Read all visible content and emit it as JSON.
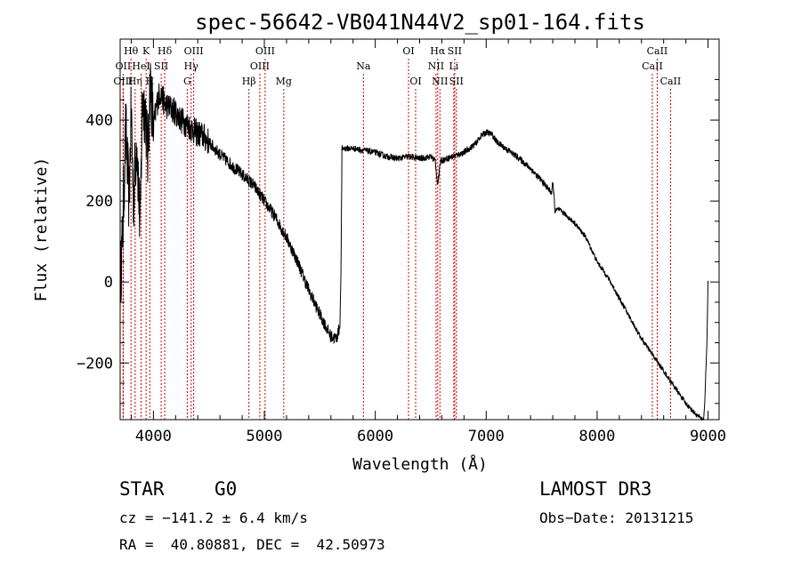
{
  "chart_data": {
    "type": "line",
    "title": "spec-56642-VB041N44V2_sp01-164.fits",
    "xlabel": "Wavelength (Å)",
    "ylabel": "Flux (relative)",
    "xlim": [
      3700,
      9100
    ],
    "ylim": [
      -340,
      600
    ],
    "xticks": [
      4000,
      5000,
      6000,
      7000,
      8000,
      9000
    ],
    "xtick_labels": [
      "4000",
      "5000",
      "6000",
      "7000",
      "8000",
      "9000"
    ],
    "yticks": [
      -200,
      0,
      200,
      400
    ],
    "ytick_labels": [
      "−200",
      "0",
      "200",
      "400"
    ],
    "line_color": "#000000",
    "marker_color": "#cc0000",
    "spectrum": {
      "x": [
        3700,
        3720,
        3750,
        3780,
        3800,
        3820,
        3850,
        3880,
        3900,
        3930,
        3950,
        3970,
        4000,
        4030,
        4060,
        4100,
        4150,
        4200,
        4250,
        4300,
        4340,
        4380,
        4450,
        4500,
        4600,
        4700,
        4800,
        4860,
        4900,
        5000,
        5100,
        5200,
        5300,
        5400,
        5500,
        5600,
        5650,
        5680,
        5690,
        5700,
        5800,
        5900,
        6000,
        6100,
        6200,
        6300,
        6400,
        6500,
        6540,
        6563,
        6590,
        6700,
        6800,
        6900,
        6950,
        7000,
        7050,
        7100,
        7200,
        7300,
        7400,
        7500,
        7590,
        7600,
        7610,
        7620,
        7650,
        7700,
        7800,
        7900,
        8000,
        8100,
        8200,
        8300,
        8400,
        8500,
        8600,
        8700,
        8800,
        8900,
        8960,
        8970,
        8990,
        9000
      ],
      "y": [
        0,
        100,
        380,
        200,
        430,
        200,
        360,
        120,
        450,
        420,
        300,
        500,
        380,
        440,
        470,
        440,
        430,
        420,
        400,
        390,
        380,
        370,
        360,
        345,
        315,
        290,
        265,
        250,
        240,
        200,
        160,
        110,
        50,
        -20,
        -80,
        -135,
        -140,
        -110,
        0,
        330,
        330,
        325,
        320,
        310,
        305,
        310,
        305,
        310,
        300,
        240,
        300,
        310,
        320,
        340,
        360,
        370,
        365,
        345,
        325,
        305,
        280,
        250,
        220,
        245,
        220,
        175,
        180,
        170,
        145,
        110,
        50,
        10,
        -40,
        -90,
        -140,
        -180,
        -220,
        -260,
        -300,
        -330,
        -340,
        -300,
        -150,
        0
      ]
    },
    "lines": [
      {
        "label": "Hθ",
        "wave": 3798,
        "row": 1
      },
      {
        "label": "OII",
        "wave": 3727,
        "row": 2
      },
      {
        "label": "OIII",
        "wave": 3727,
        "row": 3
      },
      {
        "label": "K",
        "wave": 3934,
        "row": 1
      },
      {
        "label": "Hη",
        "wave": 3835,
        "row": 3
      },
      {
        "label": "HeI",
        "wave": 3889,
        "row": 2
      },
      {
        "label": "H",
        "wave": 3968,
        "row": 3
      },
      {
        "label": "Hδ",
        "wave": 4102,
        "row": 1
      },
      {
        "label": "SII",
        "wave": 4070,
        "row": 2
      },
      {
        "label": "OIII",
        "wave": 4363,
        "row": 1
      },
      {
        "label": "Hγ",
        "wave": 4340,
        "row": 2
      },
      {
        "label": "G",
        "wave": 4305,
        "row": 3
      },
      {
        "label": "OIII",
        "wave": 5007,
        "row": 1
      },
      {
        "label": "OIII",
        "wave": 4959,
        "row": 2
      },
      {
        "label": "Hβ",
        "wave": 4861,
        "row": 3
      },
      {
        "label": "Mg",
        "wave": 5175,
        "row": 3
      },
      {
        "label": "Na",
        "wave": 5893,
        "row": 2
      },
      {
        "label": "OI",
        "wave": 6300,
        "row": 1
      },
      {
        "label": "OI",
        "wave": 6364,
        "row": 3
      },
      {
        "label": "Hα",
        "wave": 6563,
        "row": 1
      },
      {
        "label": "SII",
        "wave": 6716,
        "row": 1
      },
      {
        "label": "NII",
        "wave": 6548,
        "row": 2
      },
      {
        "label": "Li",
        "wave": 6708,
        "row": 2
      },
      {
        "label": "NII",
        "wave": 6583,
        "row": 3
      },
      {
        "label": "SII",
        "wave": 6731,
        "row": 3
      },
      {
        "label": "CaII",
        "wave": 8542,
        "row": 1
      },
      {
        "label": "CaII",
        "wave": 8498,
        "row": 2
      },
      {
        "label": "CaII",
        "wave": 8662,
        "row": 3
      }
    ]
  },
  "info": {
    "object_class": "STAR",
    "subclass": "G0",
    "survey": "LAMOST DR3",
    "cz": "cz = −141.2 ± 6.4 km/s",
    "obs_date": "Obs−Date: 20131215",
    "coords": "RA =  40.80881, DEC =  42.50973"
  }
}
